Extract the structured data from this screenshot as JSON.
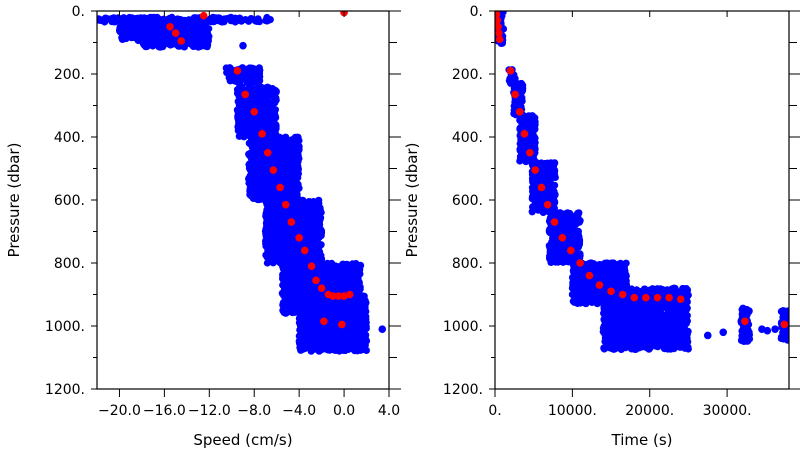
{
  "chart_data": [
    {
      "type": "scatter",
      "title": "",
      "xlabel": "Speed (cm/s)",
      "ylabel": "Pressure (dbar)",
      "xlim": [
        -22.0,
        4.0
      ],
      "ylim": [
        1200,
        0
      ],
      "x_ticks": [
        -20.0,
        -16.0,
        -12.0,
        -8.0,
        -4.0,
        0.0,
        4.0
      ],
      "x_tick_labels": [
        "−20.0",
        "−16.0",
        "−12.0",
        "−8.0",
        "−4.0",
        "0.0",
        "4.0"
      ],
      "y_ticks": [
        0,
        200,
        400,
        600,
        800,
        1000,
        1200
      ],
      "y_tick_labels": [
        "0.",
        "200.",
        "400.",
        "600.",
        "800.",
        "1000.",
        "1200."
      ],
      "series": [
        {
          "color": "#0000ff",
          "clusters": [
            {
              "x": [
                -22.0,
                -6.5
              ],
              "y": [
                20,
                35
              ]
            },
            {
              "x": [
                -20.0,
                -12.0
              ],
              "y": [
                30,
                95
              ]
            },
            {
              "x": [
                -18.0,
                -12.0
              ],
              "y": [
                85,
                115
              ]
            },
            {
              "x": [
                -10.5,
                -7.5
              ],
              "y": [
                180,
                230
              ]
            },
            {
              "x": [
                -9.5,
                -6.0
              ],
              "y": [
                240,
                400
              ]
            },
            {
              "x": [
                -8.5,
                -4.0
              ],
              "y": [
                400,
                600
              ]
            },
            {
              "x": [
                -7.0,
                -2.0
              ],
              "y": [
                600,
                800
              ]
            },
            {
              "x": [
                -5.5,
                1.5
              ],
              "y": [
                800,
                960
              ]
            },
            {
              "x": [
                -4.0,
                2.0
              ],
              "y": [
                900,
                1080
              ]
            }
          ],
          "points": [
            {
              "x": -15.0,
              "y": 55
            },
            {
              "x": -14.5,
              "y": 90
            },
            {
              "x": -13.0,
              "y": 110
            },
            {
              "x": -8.0,
              "y": 290
            },
            {
              "x": -7.0,
              "y": 350
            },
            {
              "x": -7.5,
              "y": 540
            },
            {
              "x": -5.5,
              "y": 780
            },
            {
              "x": -3.0,
              "y": 840
            },
            {
              "x": -2.5,
              "y": 960
            },
            {
              "x": 1.3,
              "y": 1000
            },
            {
              "x": 3.4,
              "y": 1010
            },
            {
              "x": -9.0,
              "y": 110
            }
          ]
        },
        {
          "color": "#ff0000",
          "points": [
            {
              "x": -15.5,
              "y": 50
            },
            {
              "x": -15.0,
              "y": 70
            },
            {
              "x": -14.5,
              "y": 95
            },
            {
              "x": -12.5,
              "y": 15
            },
            {
              "x": 0.0,
              "y": 5
            },
            {
              "x": -9.5,
              "y": 190
            },
            {
              "x": -8.8,
              "y": 265
            },
            {
              "x": -8.0,
              "y": 320
            },
            {
              "x": -7.3,
              "y": 390
            },
            {
              "x": -6.8,
              "y": 450
            },
            {
              "x": -6.3,
              "y": 505
            },
            {
              "x": -5.7,
              "y": 560
            },
            {
              "x": -5.2,
              "y": 615
            },
            {
              "x": -4.7,
              "y": 670
            },
            {
              "x": -4.0,
              "y": 720
            },
            {
              "x": -3.5,
              "y": 760
            },
            {
              "x": -2.9,
              "y": 810
            },
            {
              "x": -2.5,
              "y": 855
            },
            {
              "x": -2.0,
              "y": 880
            },
            {
              "x": -1.4,
              "y": 900
            },
            {
              "x": -1.0,
              "y": 905
            },
            {
              "x": -0.5,
              "y": 905
            },
            {
              "x": 0.0,
              "y": 905
            },
            {
              "x": 0.5,
              "y": 900
            },
            {
              "x": -1.8,
              "y": 985
            },
            {
              "x": -0.2,
              "y": 995
            }
          ]
        }
      ]
    },
    {
      "type": "scatter",
      "title": "",
      "xlabel": "Time (s)",
      "ylabel": "Pressure (dbar)",
      "xlim": [
        0,
        38000
      ],
      "ylim": [
        1200,
        0
      ],
      "x_ticks": [
        0,
        10000,
        20000,
        30000
      ],
      "x_tick_labels": [
        "0.",
        "10000.",
        "20000.",
        "30000."
      ],
      "y_ticks": [
        0,
        200,
        400,
        600,
        800,
        1000,
        1200
      ],
      "y_tick_labels": [
        "0.",
        "200.",
        "400.",
        "600.",
        "800.",
        "1000.",
        "1200."
      ],
      "series": [
        {
          "color": "#0000ff",
          "clusters": [
            {
              "x": [
                200,
                1100
              ],
              "y": [
                0,
                105
              ]
            },
            {
              "x": [
                1800,
                2600
              ],
              "y": [
                180,
                230
              ]
            },
            {
              "x": [
                2400,
                3600
              ],
              "y": [
                230,
                330
              ]
            },
            {
              "x": [
                3200,
                5200
              ],
              "y": [
                330,
                480
              ]
            },
            {
              "x": [
                4800,
                7800
              ],
              "y": [
                480,
                640
              ]
            },
            {
              "x": [
                7000,
                11000
              ],
              "y": [
                640,
                800
              ]
            },
            {
              "x": [
                10000,
                17000
              ],
              "y": [
                800,
                930
              ]
            },
            {
              "x": [
                14000,
                25000
              ],
              "y": [
                880,
                1075
              ]
            },
            {
              "x": [
                31800,
                32900
              ],
              "y": [
                940,
                1050
              ]
            },
            {
              "x": [
                37000,
                38000
              ],
              "y": [
                950,
                1050
              ]
            }
          ],
          "points": [
            {
              "x": 27500,
              "y": 1030
            },
            {
              "x": 29500,
              "y": 1020
            },
            {
              "x": 34500,
              "y": 1010
            },
            {
              "x": 35200,
              "y": 1015
            },
            {
              "x": 36200,
              "y": 1010
            }
          ]
        },
        {
          "color": "#ff0000",
          "points": [
            {
              "x": 200,
              "y": 10
            },
            {
              "x": 300,
              "y": 30
            },
            {
              "x": 400,
              "y": 50
            },
            {
              "x": 500,
              "y": 70
            },
            {
              "x": 600,
              "y": 90
            },
            {
              "x": 2000,
              "y": 190
            },
            {
              "x": 2600,
              "y": 265
            },
            {
              "x": 3200,
              "y": 320
            },
            {
              "x": 3800,
              "y": 390
            },
            {
              "x": 4500,
              "y": 450
            },
            {
              "x": 5200,
              "y": 505
            },
            {
              "x": 6000,
              "y": 560
            },
            {
              "x": 6800,
              "y": 615
            },
            {
              "x": 7700,
              "y": 670
            },
            {
              "x": 8700,
              "y": 720
            },
            {
              "x": 9800,
              "y": 760
            },
            {
              "x": 11000,
              "y": 800
            },
            {
              "x": 12200,
              "y": 840
            },
            {
              "x": 13500,
              "y": 870
            },
            {
              "x": 15000,
              "y": 890
            },
            {
              "x": 16500,
              "y": 900
            },
            {
              "x": 18000,
              "y": 910
            },
            {
              "x": 19500,
              "y": 910
            },
            {
              "x": 21000,
              "y": 910
            },
            {
              "x": 22500,
              "y": 910
            },
            {
              "x": 24000,
              "y": 915
            },
            {
              "x": 32300,
              "y": 985
            },
            {
              "x": 37400,
              "y": 995
            }
          ]
        }
      ]
    }
  ]
}
